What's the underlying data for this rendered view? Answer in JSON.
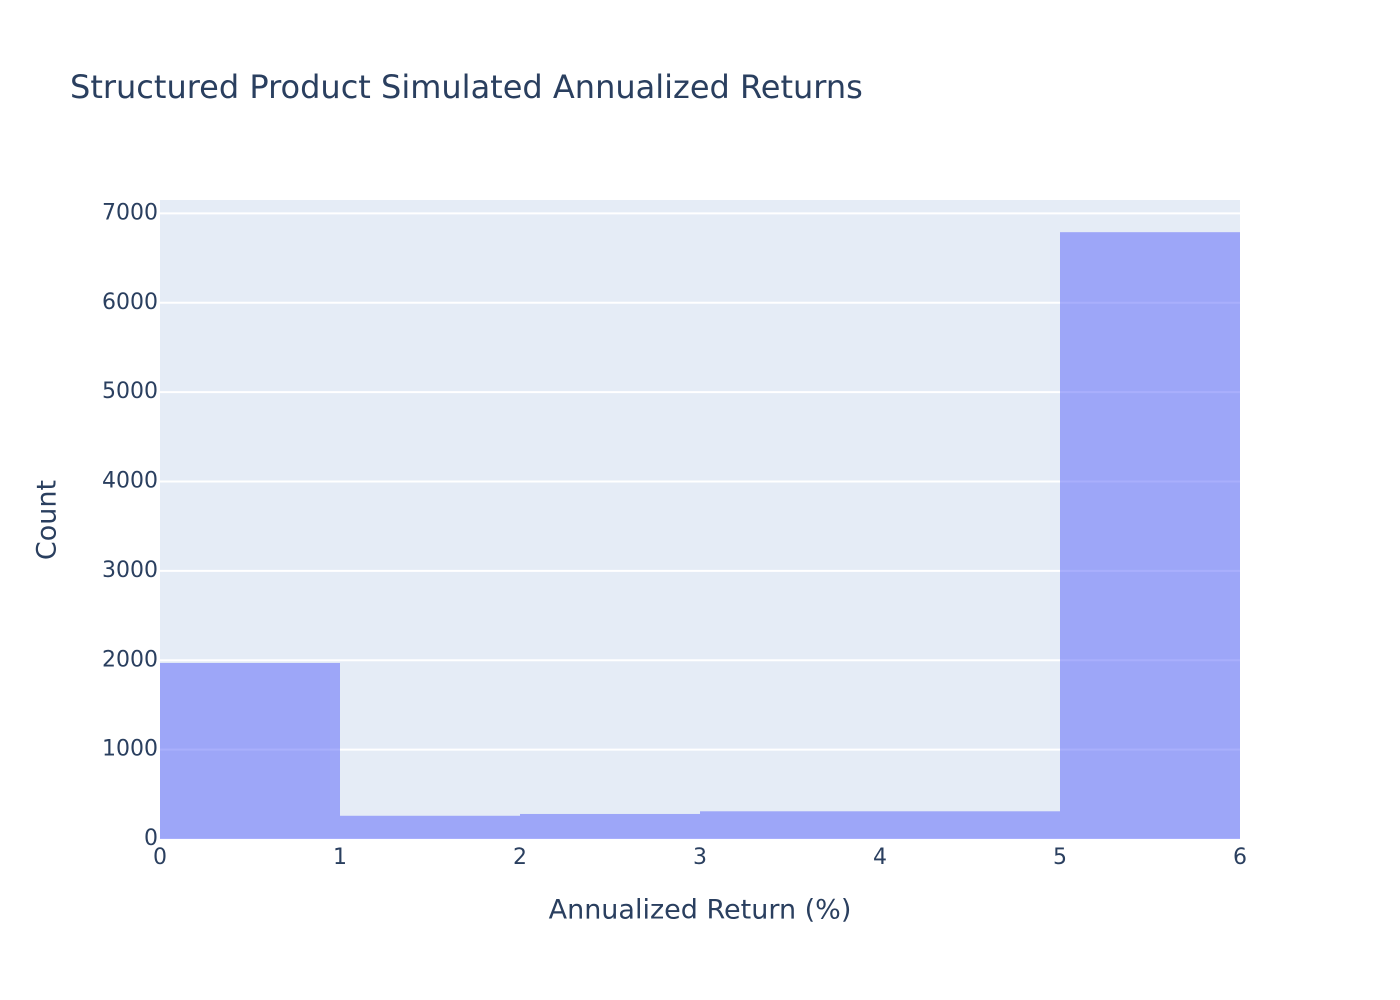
{
  "chart_data": {
    "type": "histogram",
    "title": "Structured Product Simulated Annualized Returns",
    "x_label": "Annualized Return (%)",
    "y_label": "Count",
    "bins": [
      0,
      1,
      2,
      3,
      4,
      5,
      6
    ],
    "values": [
      1970,
      260,
      280,
      310,
      310,
      6790
    ],
    "color": "#636efa",
    "xlim": [
      0,
      6
    ],
    "xticks": [
      0,
      1,
      2,
      3,
      4,
      5,
      6
    ],
    "ylim": [
      0,
      7150
    ],
    "yticks": [
      0,
      1000,
      2000,
      3000,
      4000,
      5000,
      6000,
      7000
    ],
    "grid": true
  }
}
